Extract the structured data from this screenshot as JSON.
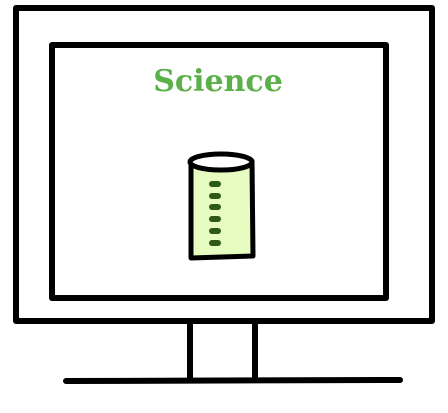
{
  "screen": {
    "title": "Science"
  },
  "icons": {
    "monitor": "monitor-icon",
    "beaker": "graduated-cylinder-icon"
  },
  "colors": {
    "title": "#5cb04a",
    "beaker_fill": "#e6fcc0",
    "beaker_marks": "#2f5a14",
    "outline": "#000000",
    "background": "#ffffff"
  }
}
